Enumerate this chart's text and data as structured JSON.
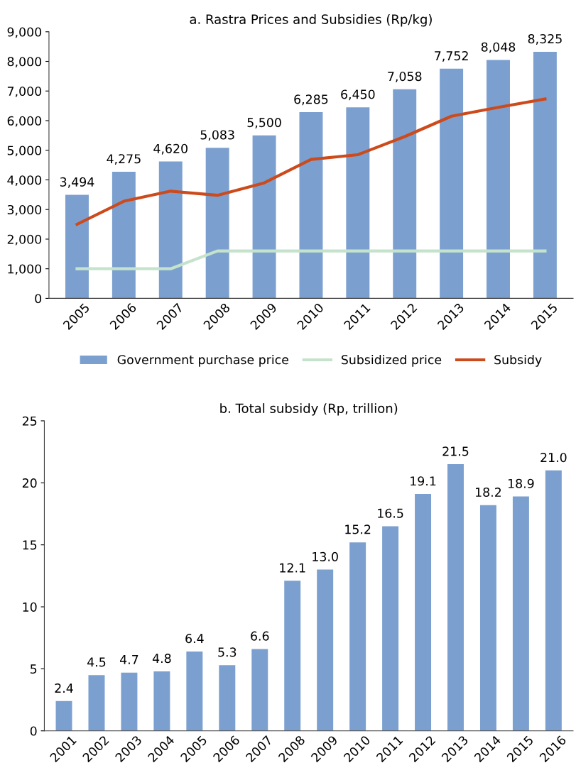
{
  "chart_data": [
    {
      "type": "bar",
      "title": "a. Rastra Prices and Subsidies (Rp/kg)",
      "categories": [
        "2005",
        "2006",
        "2007",
        "2008",
        "2009",
        "2010",
        "2011",
        "2012",
        "2013",
        "2014",
        "2015"
      ],
      "series": [
        {
          "name": "Government purchase price",
          "color": "#7ba0cf",
          "values": [
            3494,
            4275,
            4620,
            5083,
            5500,
            6285,
            6450,
            7058,
            7752,
            8048,
            8325
          ],
          "value_labels": [
            "3,494",
            "4,275",
            "4,620",
            "5,083",
            "5,500",
            "6,285",
            "6,450",
            "7,058",
            "7,752",
            "8,048",
            "8,325"
          ]
        },
        {
          "name": "Subsidized price",
          "type": "line",
          "color": "#c5e3cc",
          "values": [
            1000,
            1000,
            1000,
            1600,
            1600,
            1600,
            1600,
            1600,
            1600,
            1600,
            1600
          ]
        },
        {
          "name": "Subsidy",
          "type": "line",
          "color": "#cc4a1c",
          "values": [
            2500,
            3280,
            3620,
            3480,
            3900,
            4690,
            4850,
            5460,
            6150,
            6450,
            6730
          ]
        }
      ],
      "ylim": [
        0,
        9000
      ],
      "yticks": [
        0,
        {
          "value": 1000,
          "label": "1,000"
        },
        {
          "value": 2000,
          "label": "2,000"
        },
        {
          "value": 3000,
          "label": "3,000"
        },
        {
          "value": 4000,
          "label": "4,000"
        },
        {
          "value": 5000,
          "label": "5,000"
        },
        {
          "value": 6000,
          "label": "6,000"
        },
        {
          "value": 7000,
          "label": "7,000"
        },
        {
          "value": 8000,
          "label": "8,000"
        },
        {
          "value": 9000,
          "label": "9,000"
        }
      ],
      "grid": false,
      "legend": "bottom",
      "marker": "none",
      "line_style": "solid"
    },
    {
      "type": "bar",
      "title": "b. Total subsidy (Rp, trillion)",
      "categories": [
        "2001",
        "2002",
        "2003",
        "2004",
        "2005",
        "2006",
        "2007",
        "2008",
        "2009",
        "2010",
        "2011",
        "2012",
        "2013",
        "2014",
        "2015",
        "2016"
      ],
      "series": [
        {
          "color": "#7ba0cf",
          "values": [
            2.4,
            4.5,
            4.7,
            4.8,
            6.4,
            5.3,
            6.6,
            12.1,
            13.0,
            15.2,
            16.5,
            19.1,
            21.5,
            18.2,
            18.9,
            21.0
          ],
          "value_labels": [
            "2.4",
            "4.5",
            "4.7",
            "4.8",
            "6.4",
            "5.3",
            "6.6",
            "12.1",
            "13.0",
            "15.2",
            "16.5",
            "19.1",
            "21.5",
            "18.2",
            "18.9",
            "21.0"
          ]
        }
      ],
      "ylim": [
        0,
        25
      ],
      "yticks": [
        0,
        5,
        10,
        15,
        20,
        25
      ],
      "grid": false,
      "legend": false
    }
  ]
}
